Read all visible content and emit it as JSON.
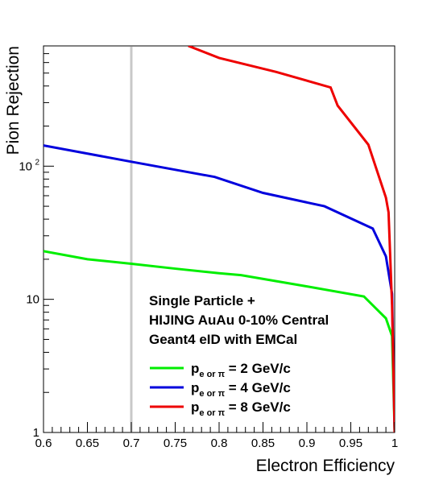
{
  "chart_data": {
    "type": "line",
    "xlabel": "Electron Efficiency",
    "ylabel": "Pion Rejection",
    "xlim": [
      0.6,
      1.0
    ],
    "ylim": [
      1,
      800
    ],
    "yscale": "log",
    "x_ticks": [
      "0.6",
      "0.65",
      "0.7",
      "0.75",
      "0.8",
      "0.85",
      "0.9",
      "0.95",
      "1"
    ],
    "y_ticks": [
      {
        "value": 1,
        "label": "1"
      },
      {
        "value": 10,
        "label": "10"
      },
      {
        "value": 100,
        "label": "10",
        "exp": "2"
      }
    ],
    "reference_line": {
      "x": 0.7,
      "color": "#c8c8c8"
    },
    "annotation": [
      "Single Particle +",
      "HIJING AuAu 0-10% Central",
      "Geant4 eID with EMCal"
    ],
    "series": [
      {
        "name": "p_{e or π} = 2 GeV/c",
        "legend": {
          "main": "p",
          "sub": "e or π",
          "rest": " = 2 GeV/c"
        },
        "color": "#00ee00",
        "x": [
          0.6,
          0.65,
          0.7,
          0.75,
          0.8,
          0.825,
          0.9,
          0.965,
          0.99,
          0.997,
          1.0
        ],
        "y": [
          23,
          20,
          18.5,
          17,
          15.7,
          15.2,
          12.5,
          10.5,
          7.2,
          5.3,
          1
        ]
      },
      {
        "name": "p_{e or π} = 4 GeV/c",
        "legend": {
          "main": "p",
          "sub": "e or π",
          "rest": " = 4 GeV/c"
        },
        "color": "#0000dd",
        "x": [
          0.6,
          0.7,
          0.795,
          0.85,
          0.92,
          0.975,
          0.99,
          0.997,
          1.0
        ],
        "y": [
          143,
          108,
          83,
          63,
          50,
          34,
          21,
          11,
          1
        ]
      },
      {
        "name": "p_{e or π} = 8 GeV/c",
        "legend": {
          "main": "p",
          "sub": "e or π",
          "rest": " = 8 GeV/c"
        },
        "color": "#ee0000",
        "x": [
          0.765,
          0.8,
          0.865,
          0.927,
          0.935,
          0.97,
          0.99,
          0.993,
          0.997,
          1.0
        ],
        "y": [
          800,
          650,
          510,
          390,
          285,
          145,
          58,
          45,
          9,
          1
        ]
      }
    ]
  }
}
